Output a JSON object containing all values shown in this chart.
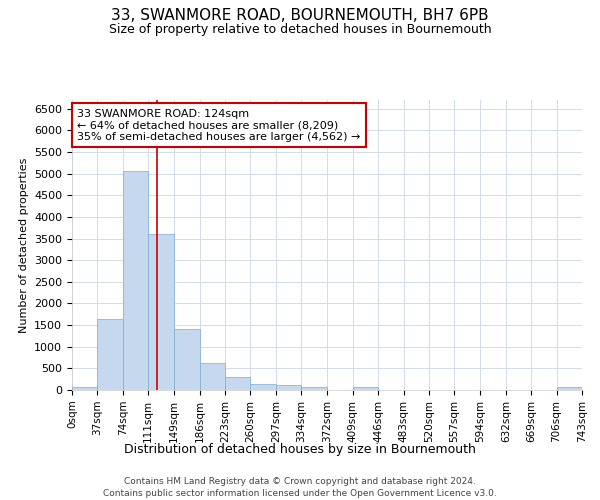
{
  "title": "33, SWANMORE ROAD, BOURNEMOUTH, BH7 6PB",
  "subtitle": "Size of property relative to detached houses in Bournemouth",
  "xlabel": "Distribution of detached houses by size in Bournemouth",
  "ylabel": "Number of detached properties",
  "footer_line1": "Contains HM Land Registry data © Crown copyright and database right 2024.",
  "footer_line2": "Contains public sector information licensed under the Open Government Licence v3.0.",
  "bar_color": "#c5d8ee",
  "bar_edge_color": "#7aadd4",
  "grid_color": "#d0dce8",
  "annotation_line1": "33 SWANMORE ROAD: 124sqm",
  "annotation_line2": "← 64% of detached houses are smaller (8,209)",
  "annotation_line3": "35% of semi-detached houses are larger (4,562) →",
  "annotation_box_color": "#cc0000",
  "property_line_x": 124,
  "ylim": [
    0,
    6700
  ],
  "bin_edges": [
    0,
    37,
    74,
    111,
    149,
    186,
    223,
    260,
    297,
    334,
    372,
    409,
    446,
    483,
    520,
    557,
    594,
    632,
    669,
    706,
    743
  ],
  "bin_heights": [
    75,
    1650,
    5060,
    3600,
    1420,
    620,
    290,
    145,
    110,
    75,
    0,
    65,
    0,
    0,
    0,
    0,
    0,
    0,
    0,
    65
  ],
  "tick_labels": [
    "0sqm",
    "37sqm",
    "74sqm",
    "111sqm",
    "149sqm",
    "186sqm",
    "223sqm",
    "260sqm",
    "297sqm",
    "334sqm",
    "372sqm",
    "409sqm",
    "446sqm",
    "483sqm",
    "520sqm",
    "557sqm",
    "594sqm",
    "632sqm",
    "669sqm",
    "706sqm",
    "743sqm"
  ],
  "title_fontsize": 11,
  "subtitle_fontsize": 9,
  "ylabel_fontsize": 8,
  "xlabel_fontsize": 9,
  "tick_fontsize": 7.5,
  "footer_fontsize": 6.5
}
